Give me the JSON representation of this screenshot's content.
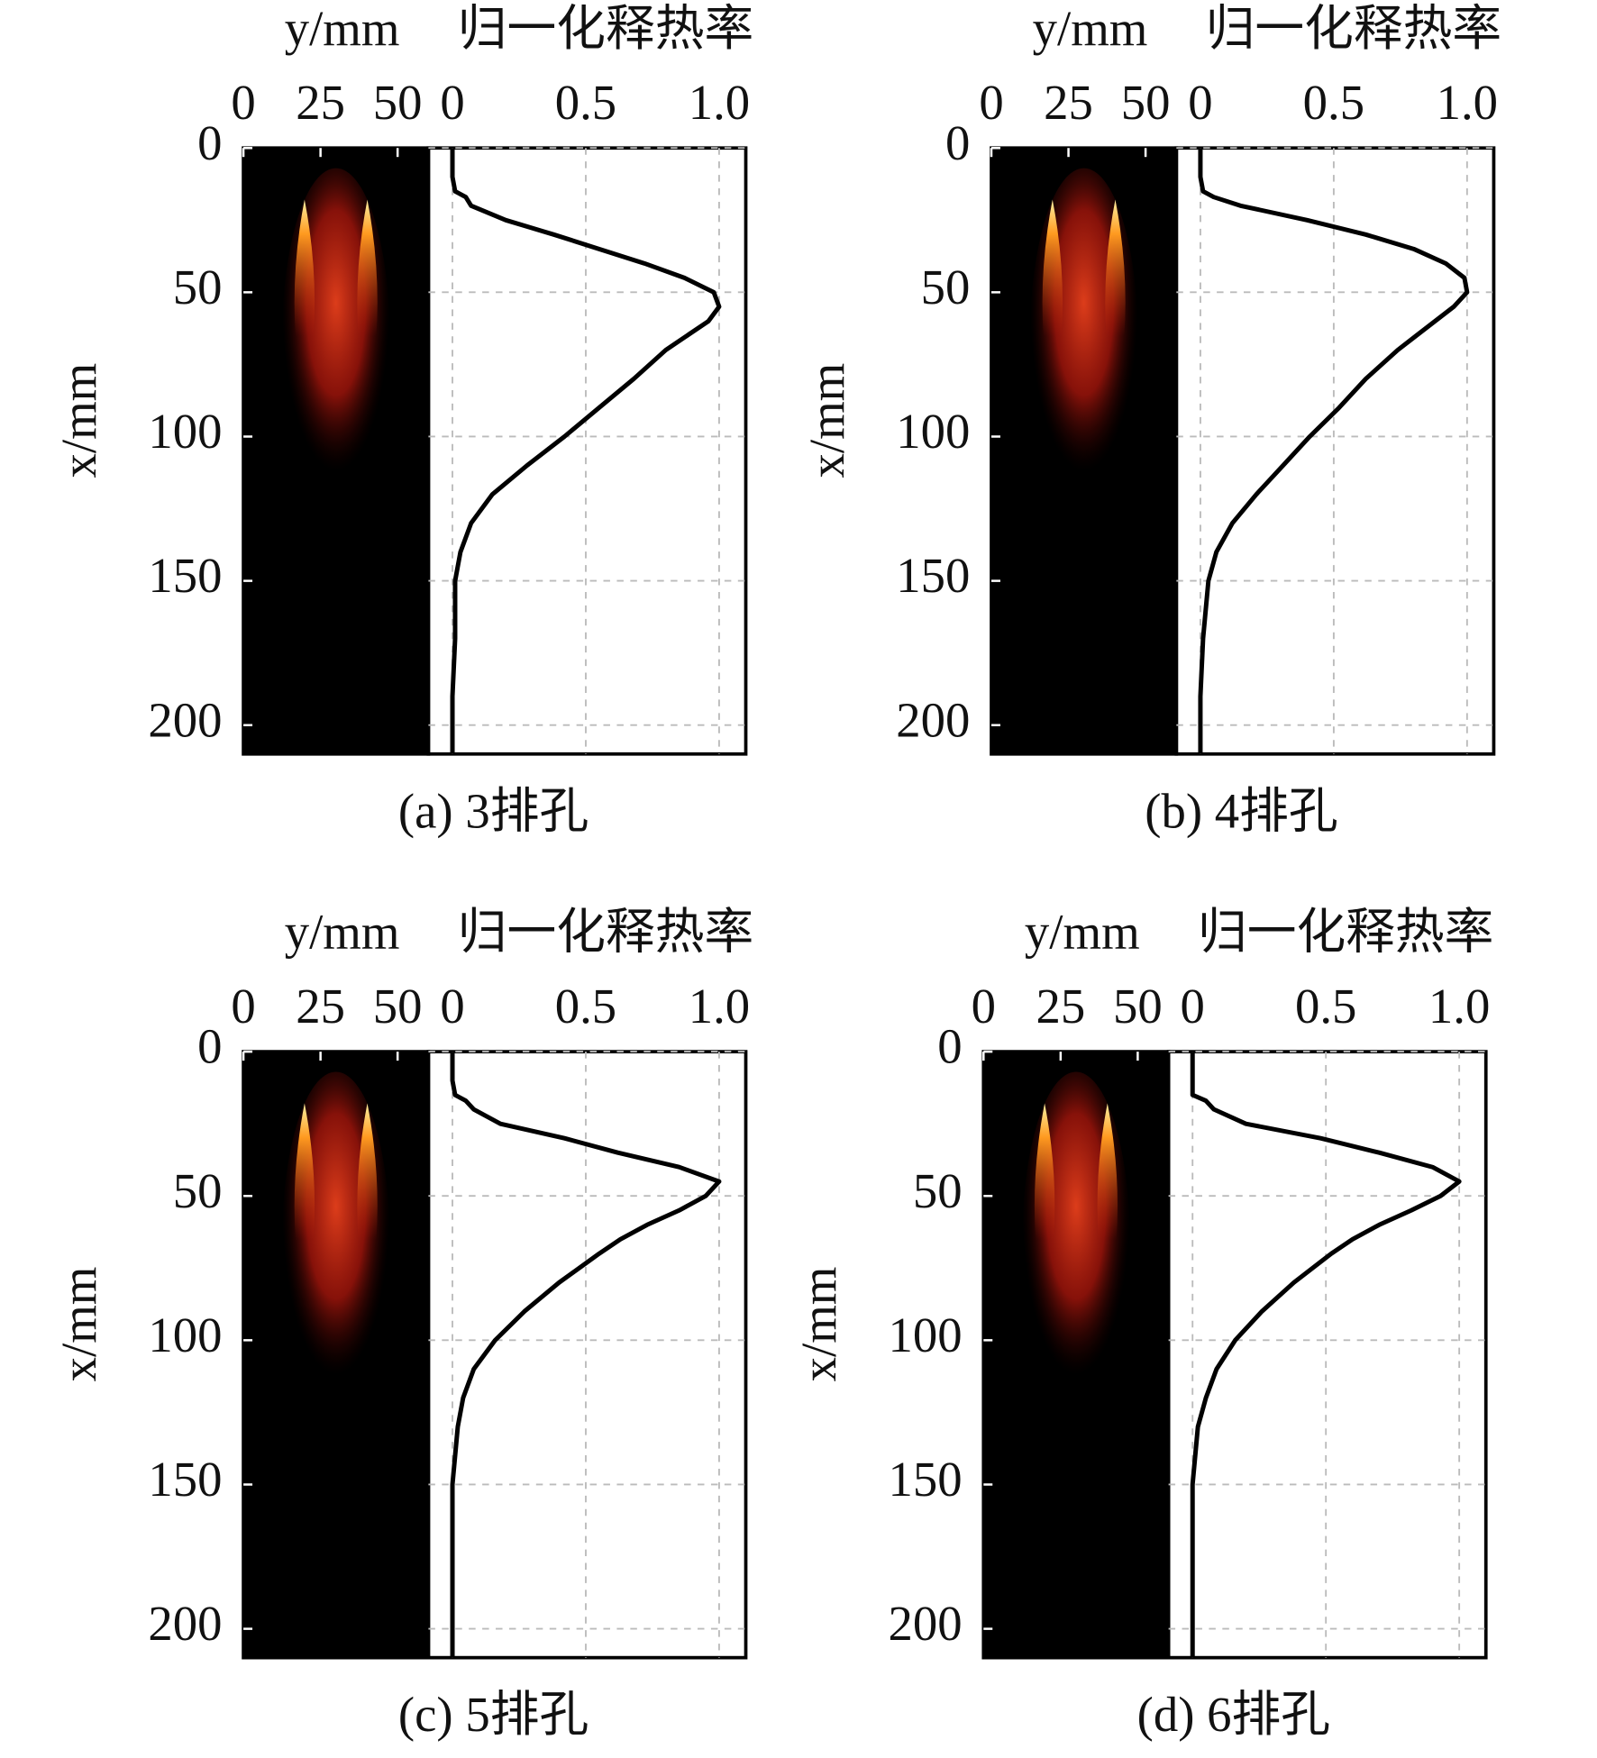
{
  "chart_data": [
    {
      "type": "line",
      "caption": "(a) 3排孔",
      "flame_label": "y/mm",
      "y_label": "归一化释热率",
      "x_label": "x/mm",
      "flame_ylim": [
        0,
        60
      ],
      "flame_yticks": [
        0,
        25,
        50
      ],
      "ylim": [
        -0.09,
        1.1
      ],
      "yticks": [
        0,
        0.5,
        {
          "value": 1,
          "label": "1.0"
        }
      ],
      "xlim": [
        0,
        210
      ],
      "xticks": [
        0,
        50,
        100,
        150,
        200
      ],
      "grid": true,
      "x": [
        0,
        10,
        15,
        17,
        20,
        25,
        30,
        35,
        40,
        45,
        50,
        55,
        60,
        65,
        70,
        80,
        90,
        100,
        110,
        120,
        130,
        140,
        150,
        170,
        190,
        210
      ],
      "values": [
        0.0,
        0.0,
        0.01,
        0.05,
        0.07,
        0.2,
        0.38,
        0.55,
        0.72,
        0.87,
        0.98,
        1.0,
        0.96,
        0.88,
        0.8,
        0.68,
        0.55,
        0.42,
        0.28,
        0.15,
        0.07,
        0.03,
        0.01,
        0.01,
        0.0,
        0.0
      ],
      "color": "#000000"
    },
    {
      "type": "line",
      "caption": "(b) 4排孔",
      "flame_label": "y/mm",
      "y_label": "归一化释热率",
      "x_label": "x/mm",
      "flame_ylim": [
        0,
        60
      ],
      "flame_yticks": [
        0,
        25,
        50
      ],
      "ylim": [
        -0.09,
        1.1
      ],
      "yticks": [
        0,
        0.5,
        {
          "value": 1,
          "label": "1.0"
        }
      ],
      "xlim": [
        0,
        210
      ],
      "xticks": [
        0,
        50,
        100,
        150,
        200
      ],
      "grid": true,
      "x": [
        0,
        10,
        15,
        17,
        20,
        25,
        30,
        35,
        40,
        45,
        50,
        55,
        60,
        65,
        70,
        80,
        90,
        100,
        110,
        120,
        130,
        140,
        150,
        170,
        190,
        210
      ],
      "values": [
        0.0,
        0.0,
        0.01,
        0.05,
        0.15,
        0.4,
        0.62,
        0.8,
        0.92,
        0.99,
        1.0,
        0.95,
        0.88,
        0.81,
        0.74,
        0.62,
        0.52,
        0.41,
        0.31,
        0.21,
        0.12,
        0.06,
        0.03,
        0.01,
        0.0,
        0.0
      ],
      "color": "#000000"
    },
    {
      "type": "line",
      "caption": "(c) 5排孔",
      "flame_label": "y/mm",
      "y_label": "归一化释热率",
      "x_label": "x/mm",
      "flame_ylim": [
        0,
        60
      ],
      "flame_yticks": [
        0,
        25,
        50
      ],
      "ylim": [
        -0.09,
        1.1
      ],
      "yticks": [
        0,
        0.5,
        {
          "value": 1,
          "label": "1.0"
        }
      ],
      "xlim": [
        0,
        210
      ],
      "xticks": [
        0,
        50,
        100,
        150,
        200
      ],
      "grid": true,
      "x": [
        0,
        10,
        15,
        17,
        20,
        25,
        30,
        35,
        40,
        45,
        50,
        55,
        60,
        65,
        70,
        80,
        90,
        100,
        110,
        120,
        130,
        140,
        150,
        170,
        190,
        210
      ],
      "values": [
        0.0,
        0.0,
        0.01,
        0.05,
        0.08,
        0.18,
        0.42,
        0.62,
        0.85,
        1.0,
        0.95,
        0.85,
        0.73,
        0.63,
        0.55,
        0.4,
        0.27,
        0.16,
        0.08,
        0.04,
        0.02,
        0.01,
        0.0,
        0.0,
        0.0,
        0.0
      ],
      "color": "#000000"
    },
    {
      "type": "line",
      "caption": "(d) 6排孔",
      "flame_label": "y/mm",
      "y_label": "归一化释热率",
      "x_label": "x/mm",
      "flame_ylim": [
        0,
        60
      ],
      "flame_yticks": [
        0,
        25,
        50
      ],
      "ylim": [
        -0.09,
        1.1
      ],
      "yticks": [
        0,
        0.5,
        {
          "value": 1,
          "label": "1.0"
        }
      ],
      "xlim": [
        0,
        210
      ],
      "xticks": [
        0,
        50,
        100,
        150,
        200
      ],
      "grid": true,
      "x": [
        0,
        10,
        15,
        17,
        20,
        25,
        30,
        35,
        40,
        45,
        50,
        55,
        60,
        65,
        70,
        80,
        90,
        100,
        110,
        120,
        130,
        140,
        150,
        170,
        190,
        210
      ],
      "values": [
        0.0,
        0.0,
        0.0,
        0.05,
        0.08,
        0.2,
        0.48,
        0.7,
        0.9,
        1.0,
        0.93,
        0.82,
        0.7,
        0.6,
        0.52,
        0.38,
        0.26,
        0.16,
        0.09,
        0.05,
        0.02,
        0.01,
        0.0,
        0.0,
        0.0,
        0.0
      ],
      "color": "#000000"
    }
  ]
}
